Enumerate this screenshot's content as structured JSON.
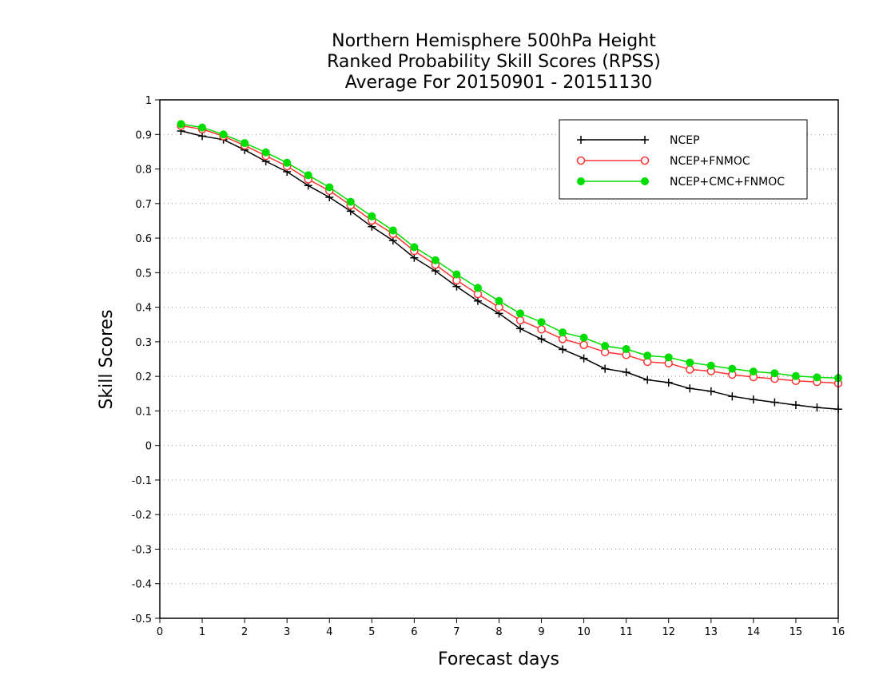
{
  "chart_data": {
    "type": "line",
    "title_lines": [
      "Northern Hemisphere 500hPa Height",
      "Ranked Probability Skill Scores (RPSS)",
      "Average For 20150901 - 20151130"
    ],
    "xlabel": "Forecast days",
    "ylabel": "Skill Scores",
    "xlim": [
      0,
      16
    ],
    "ylim": [
      -0.5,
      1
    ],
    "x_ticks": [
      "0",
      "1",
      "2",
      "3",
      "4",
      "5",
      "6",
      "7",
      "8",
      "9",
      "10",
      "11",
      "12",
      "13",
      "14",
      "15",
      "16"
    ],
    "y_ticks": [
      "1",
      "0.9",
      "0.8",
      "0.7",
      "0.6",
      "0.5",
      "0.4",
      "0.3",
      "0.2",
      "0.1",
      "0",
      "-0.1",
      "-0.2",
      "-0.3",
      "-0.4",
      "-0.5"
    ],
    "grid": "horizontal dotted",
    "legend_position": "top-right",
    "x": [
      0.5,
      1,
      1.5,
      2,
      2.5,
      3,
      3.5,
      4,
      4.5,
      5,
      5.5,
      6,
      6.5,
      7,
      7.5,
      8,
      8.5,
      9,
      9.5,
      10,
      10.5,
      11,
      11.5,
      12,
      12.5,
      13,
      13.5,
      14,
      14.5,
      15,
      15.5,
      16
    ],
    "series": [
      {
        "name": "NCEP",
        "color": "#000000",
        "marker": "plus",
        "values": [
          0.91,
          0.895,
          0.885,
          0.855,
          0.822,
          0.792,
          0.752,
          0.718,
          0.678,
          0.633,
          0.593,
          0.543,
          0.505,
          0.46,
          0.418,
          0.382,
          0.338,
          0.308,
          0.278,
          0.252,
          0.222,
          0.212,
          0.19,
          0.182,
          0.165,
          0.157,
          0.142,
          0.133,
          0.125,
          0.117,
          0.11,
          0.105
        ]
      },
      {
        "name": "NCEP+FNMOC",
        "color": "#ff3333",
        "marker": "open-circle",
        "values": [
          0.925,
          0.915,
          0.895,
          0.868,
          0.838,
          0.808,
          0.77,
          0.737,
          0.695,
          0.651,
          0.612,
          0.563,
          0.523,
          0.478,
          0.438,
          0.4,
          0.362,
          0.336,
          0.308,
          0.291,
          0.27,
          0.262,
          0.242,
          0.238,
          0.22,
          0.215,
          0.205,
          0.198,
          0.193,
          0.187,
          0.184,
          0.18
        ]
      },
      {
        "name": "NCEP+CMC+FNMOC",
        "color": "#00dd00",
        "marker": "filled-circle",
        "values": [
          0.93,
          0.92,
          0.9,
          0.875,
          0.848,
          0.818,
          0.782,
          0.747,
          0.705,
          0.663,
          0.622,
          0.574,
          0.536,
          0.495,
          0.456,
          0.418,
          0.382,
          0.357,
          0.327,
          0.312,
          0.288,
          0.279,
          0.26,
          0.255,
          0.24,
          0.231,
          0.222,
          0.214,
          0.209,
          0.201,
          0.197,
          0.195
        ]
      }
    ]
  }
}
